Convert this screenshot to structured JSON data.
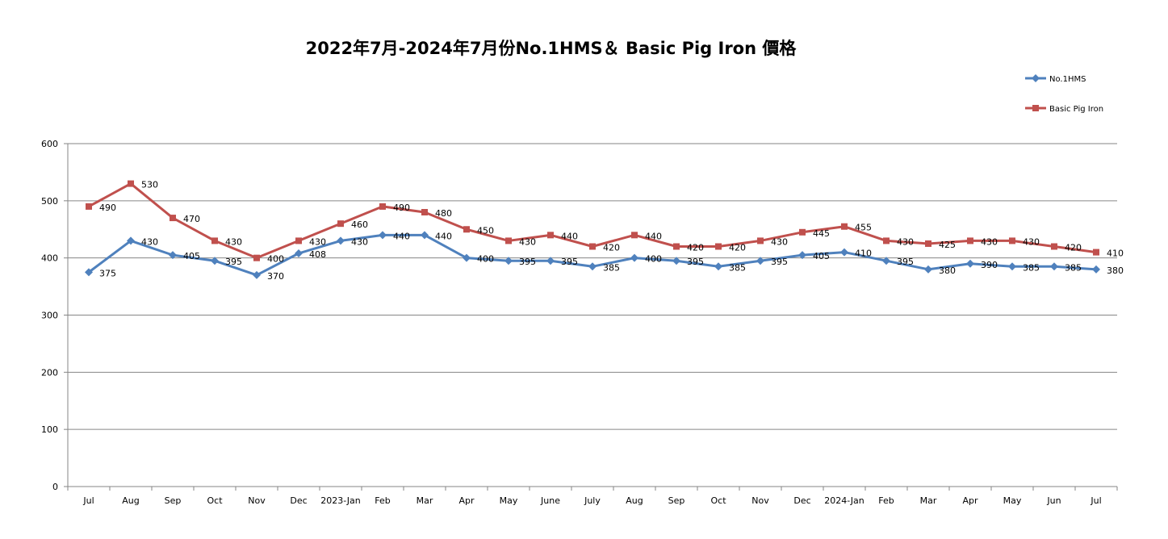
{
  "chart_data": {
    "type": "line",
    "title": "2022年7月-2024年7月份No.1HMS＆ Basic Pig Iron 價格",
    "xlabel": "",
    "ylabel": "",
    "ylim": [
      0,
      600
    ],
    "yticks": [
      0,
      100,
      200,
      300,
      400,
      500,
      600
    ],
    "grid": true,
    "legend_position": "top-right",
    "categories": [
      "Jul",
      "Aug",
      "Sep",
      "Oct",
      "Nov",
      "Dec",
      "2023-Jan",
      "Feb",
      "Mar",
      "Apr",
      "May",
      "June",
      "July",
      "Aug",
      "Sep",
      "Oct",
      "Nov",
      "Dec",
      "2024-Jan",
      "Feb",
      "Mar",
      "Apr",
      "May",
      "Jun",
      "Jul"
    ],
    "series": [
      {
        "name": "No.1HMS",
        "color": "#4F81BD",
        "marker": "diamond",
        "values": [
          375,
          430,
          405,
          395,
          370,
          408,
          430,
          440,
          440,
          400,
          395,
          395,
          385,
          400,
          395,
          385,
          395,
          405,
          410,
          395,
          380,
          390,
          385,
          385,
          380
        ]
      },
      {
        "name": "Basic Pig Iron",
        "color": "#C0504D",
        "marker": "square",
        "values": [
          490,
          530,
          470,
          430,
          400,
          430,
          460,
          490,
          480,
          450,
          430,
          440,
          420,
          440,
          420,
          420,
          430,
          445,
          455,
          430,
          425,
          430,
          430,
          420,
          410
        ]
      }
    ]
  }
}
